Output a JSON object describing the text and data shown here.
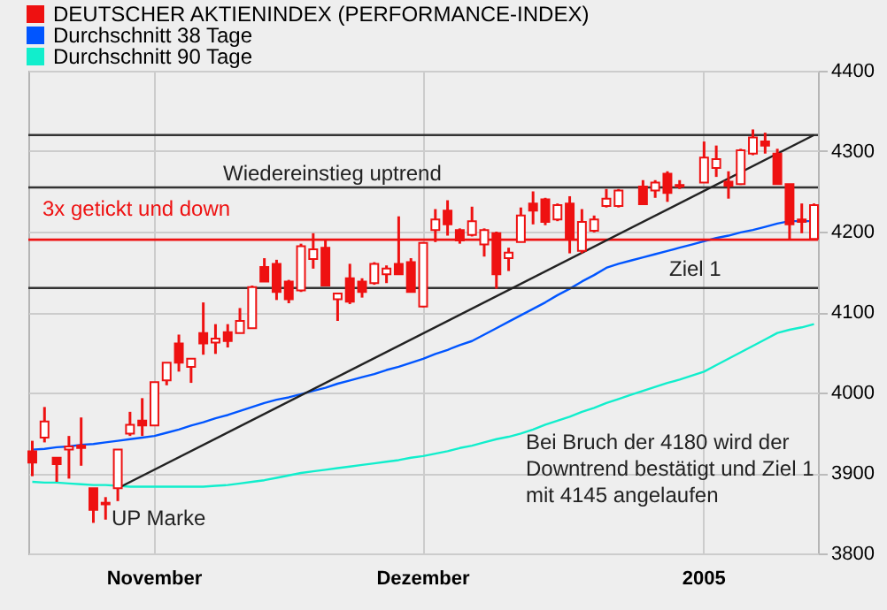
{
  "chart_data": {
    "type": "candlestick",
    "categories": [
      null,
      null,
      null,
      null,
      null,
      null,
      null,
      null,
      null,
      null,
      "November",
      null,
      null,
      null,
      null,
      null,
      null,
      null,
      null,
      null,
      null,
      null,
      null,
      null,
      null,
      null,
      null,
      null,
      null,
      null,
      null,
      null,
      "Dezember",
      null,
      null,
      null,
      null,
      null,
      null,
      null,
      null,
      null,
      null,
      null,
      null,
      null,
      null,
      null,
      null,
      null,
      null,
      null,
      null,
      null,
      null,
      "2005",
      null,
      null,
      null,
      null,
      null,
      null,
      null,
      null,
      null
    ],
    "series": [
      {
        "name": "DEUTSCHER AKTIENINDEX (PERFORMANCE-INDEX)",
        "color": "#ee1111",
        "ohlc": [
          [
            3927,
            3940,
            3896,
            3913
          ],
          [
            3944,
            3982,
            3938,
            3964
          ],
          [
            3919,
            3919,
            3889,
            3911
          ],
          [
            3929,
            3946,
            3893,
            3933
          ],
          [
            3934,
            3969,
            3909,
            3931
          ],
          [
            3881,
            3881,
            3838,
            3854
          ],
          [
            3863,
            3870,
            3842,
            3861
          ],
          [
            3881,
            3929,
            3865,
            3929
          ],
          [
            3949,
            3976,
            3946,
            3960
          ],
          [
            3965,
            3993,
            3946,
            3959
          ],
          [
            3959,
            4013,
            3959,
            4013
          ],
          [
            4015,
            4037,
            4009,
            4037
          ],
          [
            4061,
            4072,
            4026,
            4037
          ],
          [
            4032,
            4042,
            4012,
            4042
          ],
          [
            4074,
            4112,
            4047,
            4061
          ],
          [
            4062,
            4085,
            4048,
            4067
          ],
          [
            4075,
            4085,
            4056,
            4064
          ],
          [
            4074,
            4105,
            4074,
            4089
          ],
          [
            4080,
            4133,
            4080,
            4131
          ],
          [
            4156,
            4167,
            4138,
            4138
          ],
          [
            4160,
            4165,
            4115,
            4125
          ],
          [
            4138,
            4140,
            4111,
            4116
          ],
          [
            4127,
            4185,
            4125,
            4182
          ],
          [
            4166,
            4198,
            4154,
            4178
          ],
          [
            4180,
            4191,
            4133,
            4133
          ],
          [
            4116,
            4123,
            4089,
            4123
          ],
          [
            4142,
            4160,
            4110,
            4113
          ],
          [
            4138,
            4142,
            4118,
            4125
          ],
          [
            4136,
            4162,
            4134,
            4160
          ],
          [
            4147,
            4158,
            4136,
            4154
          ],
          [
            4160,
            4219,
            4147,
            4147
          ],
          [
            4162,
            4167,
            4125,
            4125
          ],
          [
            4107,
            4187,
            4106,
            4186
          ],
          [
            4202,
            4228,
            4187,
            4215
          ],
          [
            4226,
            4239,
            4195,
            4209
          ],
          [
            4202,
            4204,
            4185,
            4189
          ],
          [
            4196,
            4231,
            4194,
            4213
          ],
          [
            4184,
            4204,
            4169,
            4202
          ],
          [
            4198,
            4200,
            4129,
            4147
          ],
          [
            4167,
            4180,
            4151,
            4174
          ],
          [
            4187,
            4230,
            4187,
            4220
          ],
          [
            4235,
            4250,
            4209,
            4226
          ],
          [
            4240,
            4242,
            4208,
            4212
          ],
          [
            4215,
            4235,
            4213,
            4233
          ],
          [
            4235,
            4244,
            4173,
            4191
          ],
          [
            4176,
            4228,
            4173,
            4212
          ],
          [
            4201,
            4220,
            4199,
            4215
          ],
          [
            4232,
            4253,
            4230,
            4241
          ],
          [
            4232,
            4253,
            4230,
            4251
          ],
          null,
          [
            4256,
            4264,
            4234,
            4234
          ],
          [
            4251,
            4264,
            4242,
            4261
          ],
          [
            4272,
            4275,
            4237,
            4248
          ],
          [
            4258,
            4264,
            4253,
            4256
          ],
          null,
          [
            4261,
            4312,
            4261,
            4292
          ],
          [
            4279,
            4307,
            4268,
            4290
          ],
          [
            4262,
            4275,
            4241,
            4257
          ],
          [
            4259,
            4303,
            4258,
            4301
          ],
          [
            4297,
            4327,
            4295,
            4317
          ],
          [
            4312,
            4323,
            4297,
            4307
          ],
          [
            4297,
            4303,
            4259,
            4259
          ],
          [
            4259,
            4259,
            4191,
            4209
          ],
          [
            4215,
            4235,
            4198,
            4212
          ],
          [
            4191,
            4235,
            4191,
            4233
          ]
        ]
      },
      {
        "name": "Durchschnitt 38 Tage",
        "type": "line",
        "color": "#0055ff",
        "values": [
          3929,
          3930,
          3932,
          3933,
          3935,
          3936,
          3938,
          3940,
          3942,
          3944,
          3946,
          3950,
          3954,
          3959,
          3963,
          3968,
          3972,
          3977,
          3982,
          3987,
          3991,
          3994,
          3998,
          4002,
          4006,
          4011,
          4015,
          4019,
          4023,
          4028,
          4032,
          4037,
          4042,
          4048,
          4053,
          4059,
          4064,
          4072,
          4080,
          4088,
          4096,
          4104,
          4112,
          4121,
          4129,
          4138,
          4146,
          4155,
          4160,
          4164,
          4168,
          4172,
          4176,
          4180,
          4184,
          4188,
          4192,
          4195,
          4199,
          4202,
          4206,
          4210,
          4213,
          4213,
          4213
        ]
      },
      {
        "name": "Durchschnitt 90 Tage",
        "type": "line",
        "color": "#11eecc",
        "values": [
          3889,
          3888,
          3888,
          3887,
          3886,
          3885,
          3885,
          3884,
          3883,
          3883,
          3883,
          3883,
          3883,
          3883,
          3883,
          3884,
          3885,
          3887,
          3889,
          3891,
          3894,
          3897,
          3900,
          3902,
          3904,
          3906,
          3908,
          3910,
          3912,
          3914,
          3916,
          3919,
          3921,
          3924,
          3927,
          3931,
          3934,
          3938,
          3942,
          3945,
          3949,
          3954,
          3960,
          3965,
          3970,
          3976,
          3981,
          3987,
          3992,
          3997,
          4002,
          4007,
          4012,
          4016,
          4021,
          4026,
          4034,
          4042,
          4050,
          4058,
          4066,
          4074,
          4078,
          4081,
          4085
        ]
      },
      {
        "type": "line",
        "color": "#222222",
        "values": [
          null,
          null,
          null,
          null,
          null,
          null,
          null,
          3881,
          null,
          null,
          null,
          null,
          null,
          null,
          null,
          null,
          null,
          null,
          null,
          null,
          null,
          null,
          null,
          null,
          null,
          null,
          null,
          null,
          null,
          null,
          null,
          null,
          null,
          null,
          null,
          null,
          null,
          null,
          null,
          null,
          null,
          null,
          null,
          null,
          null,
          null,
          null,
          null,
          null,
          null,
          null,
          null,
          null,
          null,
          null,
          null,
          null,
          null,
          null,
          null,
          null,
          null,
          null,
          null,
          4320
        ]
      }
    ],
    "ylim": [
      3800,
      4400
    ],
    "yticks": [
      3800,
      3900,
      4000,
      4100,
      4200,
      4300,
      4400
    ],
    "grid": true,
    "legend": "top left",
    "ref_lines": [
      {
        "axis": "y",
        "value": 4320,
        "color": "#333333"
      },
      {
        "axis": "y",
        "value": 4255,
        "label": "Wiedereinstieg uptrend",
        "color": "#333333"
      },
      {
        "axis": "y",
        "value": 4190,
        "color": "#ee1111"
      },
      {
        "axis": "y",
        "value": 4130,
        "label": "Ziel 1",
        "color": "#333333"
      }
    ],
    "annotations": [
      "3x getickt und down",
      "UP Marke",
      "Bei Bruch der 4180 wird der Downtrend bestätigt und Ziel 1 mit 4145 angelaufen"
    ]
  }
}
